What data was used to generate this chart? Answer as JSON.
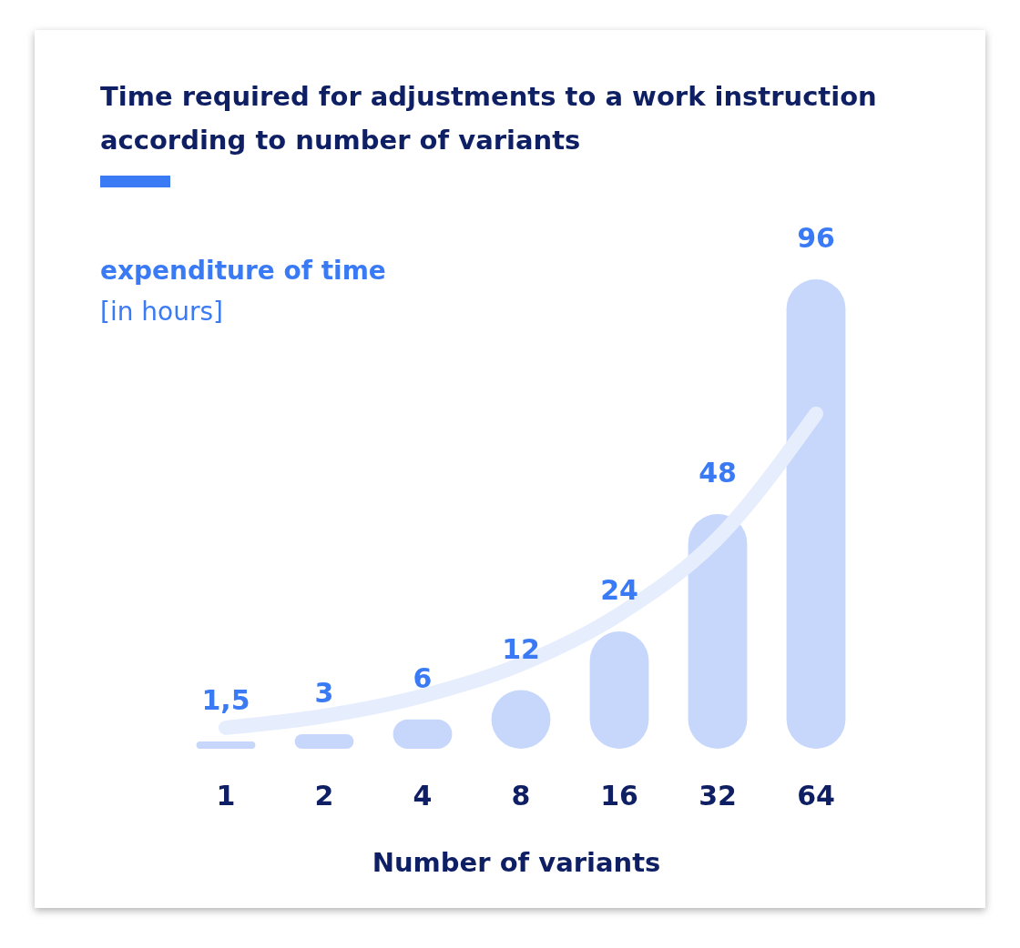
{
  "chart_data": {
    "type": "bar",
    "title": "Time required for adjustments to a work instruction according to number of variants",
    "ylabel": "expenditure of time",
    "annotations": [
      "[in hours]"
    ],
    "xlabel": "Number of variants",
    "categories": [
      "1",
      "2",
      "4",
      "8",
      "16",
      "32",
      "64"
    ],
    "series": [
      {
        "color": "#c3d5fb",
        "values": [
          1.5,
          3,
          6,
          12,
          24,
          48,
          96
        ],
        "value_labels": [
          "1,5",
          "3",
          "6",
          "12",
          "24",
          "48",
          "96"
        ]
      },
      {
        "type": "line",
        "color": "#e6edfd",
        "values": [
          4.3,
          6.7,
          10.8,
          17.3,
          27.5,
          43,
          68.5
        ]
      }
    ],
    "relative": false
  }
}
